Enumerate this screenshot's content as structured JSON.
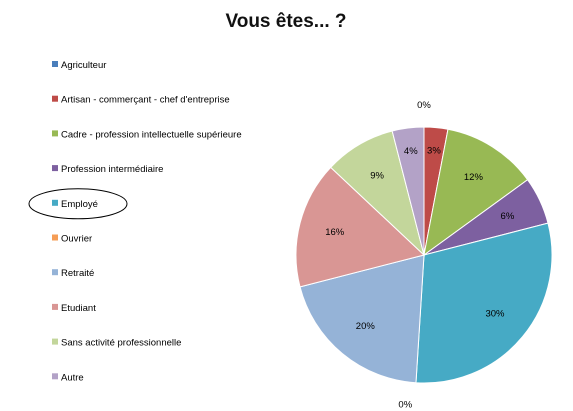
{
  "chart_data": {
    "type": "pie",
    "title": "Vous êtes... ?",
    "categories": [
      "Agriculteur",
      "Artisan - commerçant - chef d'entreprise",
      "Cadre - profession intellectuelle supérieure",
      "Profession intermédiaire",
      "Employé",
      "Ouvrier",
      "Retraité",
      "Etudiant",
      "Sans activité professionnelle",
      "Autre"
    ],
    "values": [
      0,
      3,
      12,
      6,
      30,
      0,
      20,
      16,
      9,
      4
    ],
    "labels": [
      "0%",
      "3%",
      "12%",
      "6%",
      "30%",
      "0%",
      "20%",
      "16%",
      "9%",
      "4%"
    ],
    "colors": [
      "#4A7EBB",
      "#BE4B48",
      "#98B954",
      "#7D60A0",
      "#46AAC5",
      "#F59D56",
      "#95B3D7",
      "#D99694",
      "#C3D69B",
      "#B3A2C7"
    ],
    "legend_position": "left",
    "highlighted_legend_item": "Employé"
  }
}
